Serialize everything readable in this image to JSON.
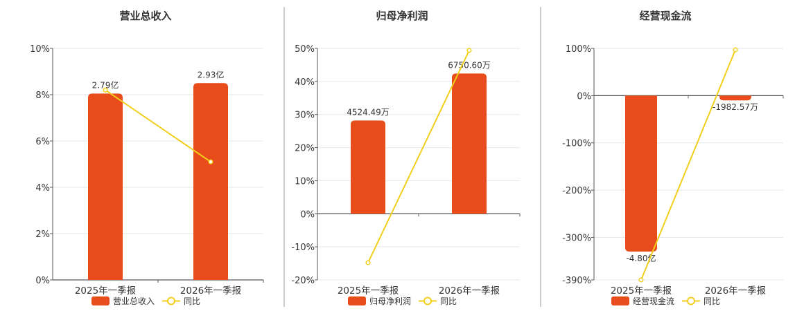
{
  "colors": {
    "bar": "#e84c1a",
    "line": "#f2cf1c",
    "grid": "#e4e7ee",
    "axis": "#555555",
    "divider": "#999999",
    "text": "#333333"
  },
  "chart_data": [
    {
      "type": "bar",
      "title": "营业总收入",
      "categories": [
        "2025年一季报",
        "2026年一季报"
      ],
      "series": [
        {
          "name": "营业总收入",
          "type": "bar",
          "values": [
            8.05,
            8.5
          ],
          "labels": [
            "2.79亿",
            "2.93亿"
          ]
        },
        {
          "name": "同比",
          "type": "line",
          "values": [
            8.2,
            5.1
          ]
        }
      ],
      "ylim": [
        0,
        10
      ],
      "yticks": [
        "0%",
        "2%",
        "4%",
        "6%",
        "8%",
        "10%"
      ],
      "legend": [
        "营业总收入",
        "同比"
      ],
      "legend_position": "bottom",
      "grid": true
    },
    {
      "type": "bar",
      "title": "归母净利润",
      "categories": [
        "2025年一季报",
        "2026年一季报"
      ],
      "series": [
        {
          "name": "归母净利润",
          "type": "bar",
          "values": [
            28.2,
            42.4
          ],
          "labels": [
            "4524.49万",
            "6750.60万"
          ]
        },
        {
          "name": "同比",
          "type": "line",
          "values": [
            -14.8,
            49.4
          ]
        }
      ],
      "ylim": [
        -20,
        50
      ],
      "yticks": [
        "-20%",
        "-10%",
        "0%",
        "10%",
        "20%",
        "30%",
        "40%",
        "50%"
      ],
      "legend": [
        "归母净利润",
        "同比"
      ],
      "legend_position": "bottom",
      "grid": true
    },
    {
      "type": "bar",
      "title": "经营现金流",
      "categories": [
        "2025年一季报",
        "2026年一季报"
      ],
      "series": [
        {
          "name": "经营现金流",
          "type": "bar",
          "values": [
            -330,
            -10
          ],
          "labels": [
            "-4.80亿",
            "-1982.57万"
          ]
        },
        {
          "name": "同比",
          "type": "line",
          "values": [
            -390,
            97
          ]
        }
      ],
      "ylim": [
        -390,
        100
      ],
      "yticks": [
        "-390%",
        "-300%",
        "-200%",
        "-100%",
        "0%",
        "100%"
      ],
      "ytick_values": [
        -390,
        -300,
        -200,
        -100,
        0,
        100
      ],
      "legend": [
        "经营现金流",
        "同比"
      ],
      "legend_position": "bottom",
      "grid": true
    }
  ]
}
